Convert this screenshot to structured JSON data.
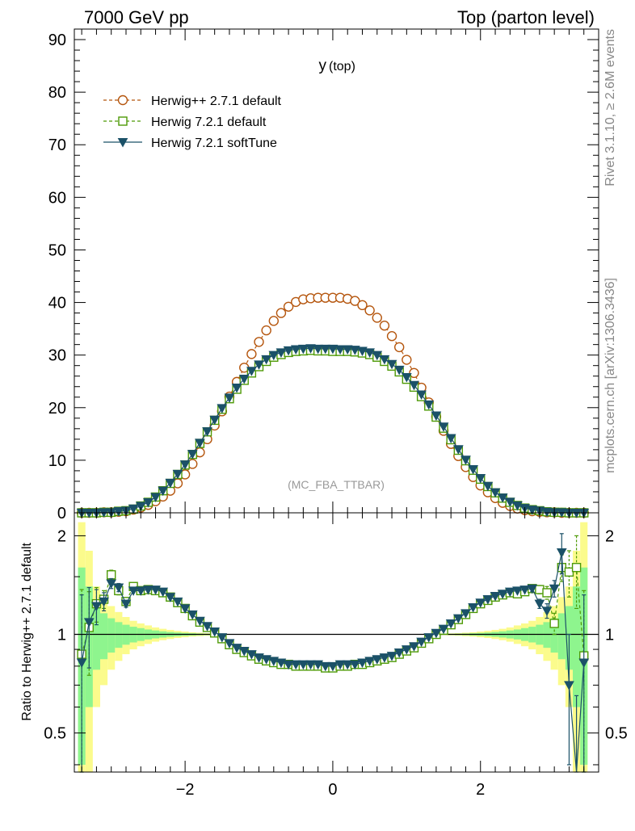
{
  "header": {
    "left": "7000 GeV pp",
    "right": "Top (parton level)"
  },
  "side": {
    "rivet": "Rivet 3.1.10, ≥ 2.6M events",
    "mcplots": "mcplots.cern.ch [arXiv:1306.3436]"
  },
  "colors": {
    "herwigpp": "#b5560e",
    "herwig721": "#4e9a06",
    "softtune": "#1b5168",
    "band_green": "#8ef58e",
    "band_yellow": "#fbfb8c"
  },
  "chart_data": [
    {
      "type": "line",
      "title": "y",
      "title_sub": "(top)",
      "annotation": "(MC_FBA_TTBAR)",
      "xlim": [
        -3.5,
        3.6
      ],
      "ylim": [
        0,
        92
      ],
      "yticks": [
        0,
        10,
        20,
        30,
        40,
        50,
        60,
        70,
        80,
        90
      ],
      "legend_position": "top-left",
      "series": [
        {
          "name": "Herwig++ 2.7.1 default",
          "style": "dashed-open-circle",
          "x": [
            -3.4,
            -3.3,
            -3.2,
            -3.1,
            -3.0,
            -2.9,
            -2.8,
            -2.7,
            -2.6,
            -2.5,
            -2.4,
            -2.3,
            -2.2,
            -2.1,
            -2.0,
            -1.9,
            -1.8,
            -1.7,
            -1.6,
            -1.5,
            -1.4,
            -1.3,
            -1.2,
            -1.1,
            -1.0,
            -0.9,
            -0.8,
            -0.7,
            -0.6,
            -0.5,
            -0.4,
            -0.3,
            -0.2,
            -0.1,
            0.0,
            0.1,
            0.2,
            0.3,
            0.4,
            0.5,
            0.6,
            0.7,
            0.8,
            0.9,
            1.0,
            1.1,
            1.2,
            1.3,
            1.4,
            1.5,
            1.6,
            1.7,
            1.8,
            1.9,
            2.0,
            2.1,
            2.2,
            2.3,
            2.4,
            2.5,
            2.6,
            2.7,
            2.8,
            2.9,
            3.0,
            3.1,
            3.2,
            3.3,
            3.4
          ],
          "y": [
            0.0,
            0.0,
            0.0,
            0.1,
            0.1,
            0.2,
            0.3,
            0.6,
            1.0,
            1.5,
            2.2,
            3.1,
            4.2,
            5.6,
            7.3,
            9.3,
            11.5,
            14.0,
            16.6,
            19.3,
            22.1,
            24.9,
            27.6,
            30.2,
            32.5,
            34.7,
            36.5,
            38.0,
            39.2,
            40.1,
            40.6,
            40.8,
            40.9,
            40.9,
            40.9,
            40.9,
            40.7,
            40.3,
            39.5,
            38.5,
            37.1,
            35.6,
            33.6,
            31.5,
            29.1,
            26.6,
            23.8,
            21.0,
            18.3,
            15.6,
            13.1,
            10.8,
            8.7,
            6.8,
            5.2,
            3.9,
            2.8,
            1.9,
            1.3,
            0.8,
            0.5,
            0.3,
            0.2,
            0.1,
            0.1,
            0.0,
            0.0,
            0.0,
            0.0
          ]
        },
        {
          "name": "Herwig 7.2.1 default",
          "style": "dashed-open-square",
          "x": [
            -3.4,
            -3.3,
            -3.2,
            -3.1,
            -3.0,
            -2.9,
            -2.8,
            -2.7,
            -2.6,
            -2.5,
            -2.4,
            -2.3,
            -2.2,
            -2.1,
            -2.0,
            -1.9,
            -1.8,
            -1.7,
            -1.6,
            -1.5,
            -1.4,
            -1.3,
            -1.2,
            -1.1,
            -1.0,
            -0.9,
            -0.8,
            -0.7,
            -0.6,
            -0.5,
            -0.4,
            -0.3,
            -0.2,
            -0.1,
            0.0,
            0.1,
            0.2,
            0.3,
            0.4,
            0.5,
            0.6,
            0.7,
            0.8,
            0.9,
            1.0,
            1.1,
            1.2,
            1.3,
            1.4,
            1.5,
            1.6,
            1.7,
            1.8,
            1.9,
            2.0,
            2.1,
            2.2,
            2.3,
            2.4,
            2.5,
            2.6,
            2.7,
            2.8,
            2.9,
            3.0,
            3.1,
            3.2,
            3.3,
            3.4
          ],
          "y": [
            0.0,
            0.0,
            0.0,
            0.1,
            0.1,
            0.3,
            0.4,
            0.7,
            1.3,
            2.0,
            3.0,
            4.2,
            5.6,
            7.3,
            9.1,
            11.1,
            13.2,
            15.4,
            17.6,
            19.7,
            21.7,
            23.5,
            25.2,
            26.6,
            27.8,
            28.8,
            29.6,
            30.1,
            30.5,
            30.7,
            30.8,
            30.9,
            30.8,
            30.8,
            30.7,
            30.7,
            30.7,
            30.6,
            30.4,
            30.1,
            29.6,
            28.8,
            27.9,
            26.8,
            25.4,
            23.9,
            22.1,
            20.3,
            18.2,
            16.1,
            13.9,
            11.9,
            9.9,
            8.1,
            6.4,
            5.0,
            3.8,
            2.8,
            2.0,
            1.4,
            0.9,
            0.6,
            0.4,
            0.2,
            0.1,
            0.1,
            0.0,
            0.0,
            0.0
          ]
        },
        {
          "name": "Herwig 7.2.1 softTune",
          "style": "solid-filled-triangle-down",
          "x": [
            -3.4,
            -3.3,
            -3.2,
            -3.1,
            -3.0,
            -2.9,
            -2.8,
            -2.7,
            -2.6,
            -2.5,
            -2.4,
            -2.3,
            -2.2,
            -2.1,
            -2.0,
            -1.9,
            -1.8,
            -1.7,
            -1.6,
            -1.5,
            -1.4,
            -1.3,
            -1.2,
            -1.1,
            -1.0,
            -0.9,
            -0.8,
            -0.7,
            -0.6,
            -0.5,
            -0.4,
            -0.3,
            -0.2,
            -0.1,
            0.0,
            0.1,
            0.2,
            0.3,
            0.4,
            0.5,
            0.6,
            0.7,
            0.8,
            0.9,
            1.0,
            1.1,
            1.2,
            1.3,
            1.4,
            1.5,
            1.6,
            1.7,
            1.8,
            1.9,
            2.0,
            2.1,
            2.2,
            2.3,
            2.4,
            2.5,
            2.6,
            2.7,
            2.8,
            2.9,
            3.0,
            3.1,
            3.2,
            3.3,
            3.4
          ],
          "y": [
            0.0,
            0.0,
            0.0,
            0.1,
            0.1,
            0.3,
            0.4,
            0.8,
            1.3,
            2.0,
            3.0,
            4.2,
            5.7,
            7.4,
            9.2,
            11.2,
            13.3,
            15.5,
            17.7,
            19.9,
            21.9,
            23.8,
            25.5,
            27.0,
            28.2,
            29.2,
            30.0,
            30.5,
            30.9,
            31.1,
            31.2,
            31.3,
            31.2,
            31.2,
            31.2,
            31.1,
            31.1,
            31.0,
            30.8,
            30.5,
            30.0,
            29.2,
            28.3,
            27.2,
            25.8,
            24.3,
            22.5,
            20.6,
            18.5,
            16.4,
            14.2,
            12.1,
            10.1,
            8.3,
            6.6,
            5.1,
            3.9,
            2.9,
            2.1,
            1.4,
            0.9,
            0.6,
            0.4,
            0.2,
            0.1,
            0.1,
            0.0,
            0.0,
            0.0
          ]
        }
      ]
    },
    {
      "type": "line",
      "ylabel": "Ratio to Herwig++ 2.7.1 default",
      "xlim": [
        -3.5,
        3.6
      ],
      "ylim": [
        0.38,
        2.35
      ],
      "yscale": "log",
      "yticks": [
        0.5,
        1,
        2
      ],
      "xticks": [
        -2,
        0,
        2
      ],
      "reference_line": 1,
      "series": [
        {
          "name": "Herwig 7.2.1 default",
          "x": [
            -3.4,
            -3.3,
            -3.2,
            -3.1,
            -3.0,
            -2.9,
            -2.8,
            -2.7,
            -2.6,
            -2.5,
            -2.4,
            -2.3,
            -2.2,
            -2.1,
            -2.0,
            -1.9,
            -1.8,
            -1.7,
            -1.6,
            -1.5,
            -1.4,
            -1.3,
            -1.2,
            -1.1,
            -1.0,
            -0.9,
            -0.8,
            -0.7,
            -0.6,
            -0.5,
            -0.4,
            -0.3,
            -0.2,
            -0.1,
            0.0,
            0.1,
            0.2,
            0.3,
            0.4,
            0.5,
            0.6,
            0.7,
            0.8,
            0.9,
            1.0,
            1.1,
            1.2,
            1.3,
            1.4,
            1.5,
            1.6,
            1.7,
            1.8,
            1.9,
            2.0,
            2.1,
            2.2,
            2.3,
            2.4,
            2.5,
            2.6,
            2.7,
            2.8,
            2.9,
            3.0,
            3.1,
            3.2,
            3.3,
            3.4
          ],
          "y": [
            0.87,
            1.05,
            1.24,
            1.28,
            1.52,
            1.36,
            1.26,
            1.4,
            1.36,
            1.37,
            1.36,
            1.34,
            1.3,
            1.25,
            1.2,
            1.14,
            1.09,
            1.05,
            1.01,
            0.97,
            0.93,
            0.9,
            0.88,
            0.86,
            0.84,
            0.83,
            0.82,
            0.81,
            0.81,
            0.8,
            0.8,
            0.8,
            0.8,
            0.79,
            0.79,
            0.8,
            0.8,
            0.81,
            0.81,
            0.82,
            0.83,
            0.84,
            0.85,
            0.87,
            0.89,
            0.91,
            0.94,
            0.97,
            1.0,
            1.03,
            1.07,
            1.11,
            1.15,
            1.2,
            1.24,
            1.27,
            1.3,
            1.32,
            1.34,
            1.33,
            1.35,
            1.38,
            1.37,
            1.34,
            1.08,
            1.6,
            1.55,
            1.6,
            0.86
          ],
          "yerr": [
            0.5,
            0.3,
            0.15,
            0.08,
            0.05,
            0.04,
            0.03,
            0.02,
            0.02,
            0.01,
            0.01,
            0.01,
            0.01,
            0.01,
            0.01,
            0.01,
            0.01,
            0.01,
            0.01,
            0.01,
            0.01,
            0.01,
            0.01,
            0.01,
            0.01,
            0.01,
            0.01,
            0.01,
            0.01,
            0.01,
            0.01,
            0.01,
            0.01,
            0.01,
            0.01,
            0.01,
            0.01,
            0.01,
            0.01,
            0.01,
            0.01,
            0.01,
            0.01,
            0.01,
            0.01,
            0.01,
            0.01,
            0.01,
            0.01,
            0.01,
            0.01,
            0.01,
            0.01,
            0.01,
            0.01,
            0.01,
            0.01,
            0.01,
            0.01,
            0.02,
            0.02,
            0.03,
            0.04,
            0.06,
            0.08,
            0.15,
            0.25,
            0.4,
            0.5
          ]
        },
        {
          "name": "Herwig 7.2.1 softTune",
          "x": [
            -3.4,
            -3.3,
            -3.2,
            -3.1,
            -3.0,
            -2.9,
            -2.8,
            -2.7,
            -2.6,
            -2.5,
            -2.4,
            -2.3,
            -2.2,
            -2.1,
            -2.0,
            -1.9,
            -1.8,
            -1.7,
            -1.6,
            -1.5,
            -1.4,
            -1.3,
            -1.2,
            -1.1,
            -1.0,
            -0.9,
            -0.8,
            -0.7,
            -0.6,
            -0.5,
            -0.4,
            -0.3,
            -0.2,
            -0.1,
            0.0,
            0.1,
            0.2,
            0.3,
            0.4,
            0.5,
            0.6,
            0.7,
            0.8,
            0.9,
            1.0,
            1.1,
            1.2,
            1.3,
            1.4,
            1.5,
            1.6,
            1.7,
            1.8,
            1.9,
            2.0,
            2.1,
            2.2,
            2.3,
            2.4,
            2.5,
            2.6,
            2.7,
            2.8,
            2.9,
            3.0,
            3.1,
            3.2,
            3.3,
            3.4
          ],
          "y": [
            0.82,
            1.09,
            1.22,
            1.26,
            1.43,
            1.39,
            1.24,
            1.36,
            1.36,
            1.37,
            1.37,
            1.35,
            1.3,
            1.26,
            1.2,
            1.15,
            1.1,
            1.06,
            1.02,
            0.98,
            0.94,
            0.91,
            0.89,
            0.87,
            0.85,
            0.84,
            0.83,
            0.82,
            0.81,
            0.81,
            0.81,
            0.81,
            0.81,
            0.8,
            0.8,
            0.81,
            0.81,
            0.81,
            0.82,
            0.83,
            0.84,
            0.85,
            0.86,
            0.88,
            0.9,
            0.92,
            0.95,
            0.98,
            1.01,
            1.04,
            1.08,
            1.12,
            1.16,
            1.21,
            1.25,
            1.28,
            1.31,
            1.33,
            1.35,
            1.36,
            1.37,
            1.38,
            1.24,
            1.18,
            1.38,
            1.78,
            0.7,
            0.25,
            0.82
          ],
          "yerr": [
            0.5,
            0.3,
            0.15,
            0.08,
            0.05,
            0.04,
            0.03,
            0.02,
            0.02,
            0.01,
            0.01,
            0.01,
            0.01,
            0.01,
            0.01,
            0.01,
            0.01,
            0.01,
            0.01,
            0.01,
            0.01,
            0.01,
            0.01,
            0.01,
            0.01,
            0.01,
            0.01,
            0.01,
            0.01,
            0.01,
            0.01,
            0.01,
            0.01,
            0.01,
            0.01,
            0.01,
            0.01,
            0.01,
            0.01,
            0.01,
            0.01,
            0.01,
            0.01,
            0.01,
            0.01,
            0.01,
            0.01,
            0.01,
            0.01,
            0.01,
            0.01,
            0.01,
            0.01,
            0.01,
            0.01,
            0.01,
            0.01,
            0.01,
            0.01,
            0.02,
            0.02,
            0.03,
            0.04,
            0.06,
            0.08,
            0.25,
            0.3,
            0.4,
            0.5
          ]
        }
      ],
      "bands": {
        "x_edges": [
          -3.45,
          -3.35,
          -3.25,
          -3.15,
          -3.05,
          -2.95,
          -2.85,
          -2.75,
          -2.65,
          -2.55,
          -2.45,
          -2.35,
          -2.25,
          -2.15,
          -2.05,
          -1.95,
          -1.85,
          -1.75,
          -1.65,
          -1.55,
          -1.45,
          1.45,
          1.55,
          1.65,
          1.75,
          1.85,
          1.95,
          2.05,
          2.15,
          2.25,
          2.35,
          2.45,
          2.55,
          2.65,
          2.75,
          2.85,
          2.95,
          3.05,
          3.15,
          3.25,
          3.35,
          3.45
        ],
        "green_half": [
          0.6,
          0.4,
          0.22,
          0.16,
          0.12,
          0.09,
          0.07,
          0.055,
          0.045,
          0.035,
          0.028,
          0.022,
          0.017,
          0.013,
          0.01,
          0.008,
          0.006,
          0.005,
          0.004,
          0.003,
          0.0,
          0.003,
          0.004,
          0.005,
          0.006,
          0.008,
          0.01,
          0.013,
          0.017,
          0.022,
          0.028,
          0.035,
          0.045,
          0.055,
          0.07,
          0.09,
          0.12,
          0.16,
          0.22,
          0.4,
          0.6
        ],
        "yellow_half": [
          1.2,
          0.8,
          0.4,
          0.3,
          0.22,
          0.17,
          0.13,
          0.1,
          0.08,
          0.065,
          0.05,
          0.04,
          0.032,
          0.025,
          0.02,
          0.015,
          0.012,
          0.009,
          0.007,
          0.005,
          0.0,
          0.005,
          0.007,
          0.009,
          0.012,
          0.015,
          0.02,
          0.025,
          0.032,
          0.04,
          0.05,
          0.065,
          0.08,
          0.1,
          0.13,
          0.17,
          0.22,
          0.3,
          0.4,
          0.8,
          1.2
        ]
      }
    }
  ]
}
